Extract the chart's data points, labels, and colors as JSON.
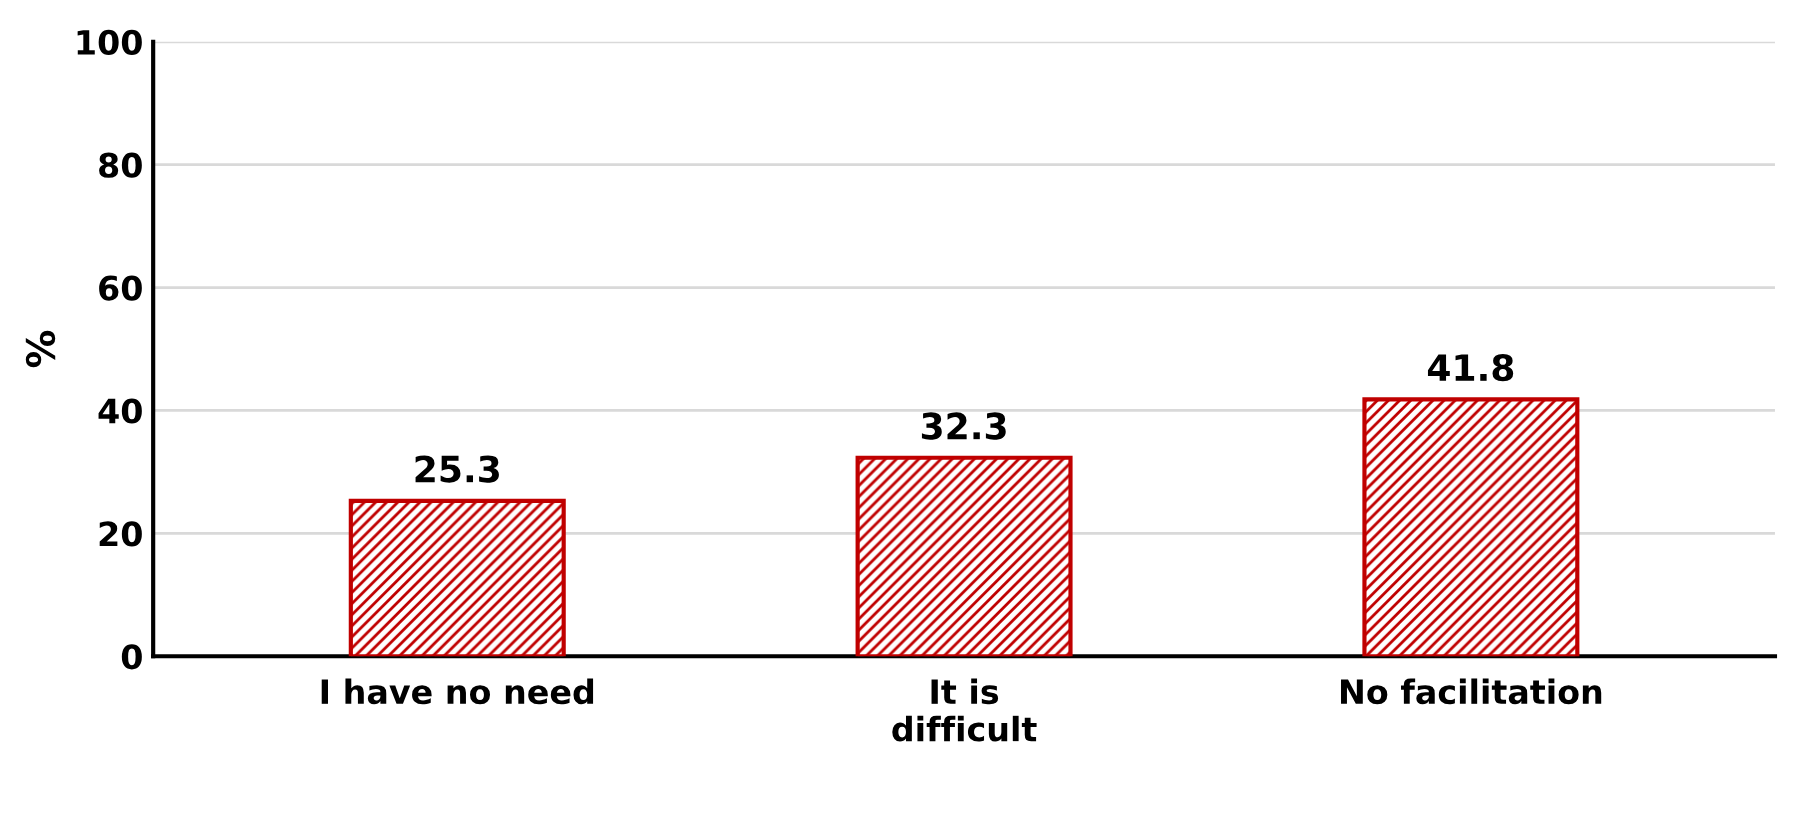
{
  "chart_data": {
    "type": "bar",
    "ylabel": "%",
    "categories": [
      "I have no need",
      "It is\ndifficult",
      "No facilitation"
    ],
    "values": [
      25.3,
      32.3,
      41.8
    ],
    "color": "#c00000",
    "ylim": [
      0,
      100
    ],
    "yticks": [
      0,
      20,
      40,
      60,
      80,
      100
    ],
    "grid": "y",
    "data_labels": true
  }
}
